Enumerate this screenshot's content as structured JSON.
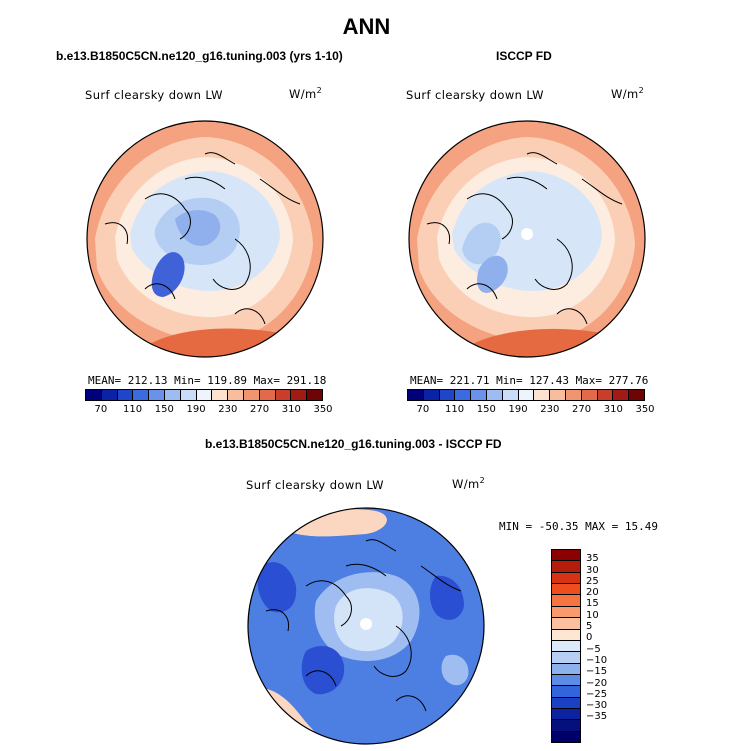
{
  "figure": {
    "title": "ANN"
  },
  "panels": [
    {
      "title": "b.e13.B1850C5CN.ne120_g16.tuning.003 (yrs 1-10)",
      "variable_label": "Surf clearsky down LW",
      "units_base": "W/m",
      "units_exp": "2",
      "stats_text": "MEAN= 212.13  Min= 119.89  Max= 291.18",
      "stats": {
        "mean": 212.13,
        "min": 119.89,
        "max": 291.18
      }
    },
    {
      "title": "ISCCP FD",
      "variable_label": "Surf clearsky down LW",
      "units_base": "W/m",
      "units_exp": "2",
      "stats_text": "MEAN= 221.71  Min= 127.43  Max= 277.76",
      "stats": {
        "mean": 221.71,
        "min": 127.43,
        "max": 277.76
      }
    },
    {
      "title": "b.e13.B1850C5CN.ne120_g16.tuning.003 - ISCCP FD",
      "variable_label": "Surf clearsky down LW",
      "units_base": "W/m",
      "units_exp": "2",
      "stats_text": "MIN = -50.35 MAX =  15.49",
      "stats": {
        "min": -50.35,
        "max": 15.49
      }
    }
  ],
  "colorbar_main": {
    "colors": [
      "#00007a",
      "#0a23a6",
      "#1f45c9",
      "#3c6ae0",
      "#6a92ea",
      "#9dbcf2",
      "#c9dcf8",
      "#eef4fb",
      "#fde2cf",
      "#f8bd9c",
      "#f19470",
      "#e2694a",
      "#c93e2a",
      "#a11a14",
      "#6e0404"
    ],
    "labels": [
      "70",
      "110",
      "150",
      "190",
      "230",
      "270",
      "310",
      "350"
    ]
  },
  "colorbar_diff": {
    "colors": [
      "#8b0000",
      "#b41c0c",
      "#d73214",
      "#ee4e1e",
      "#f6743f",
      "#f99a6c",
      "#fbc09f",
      "#fde6d3",
      "#dce9f8",
      "#b7cff2",
      "#8db1ec",
      "#5c8ce5",
      "#3264dc",
      "#1a40c4",
      "#0d22a0",
      "#06107c",
      "#00006b"
    ],
    "labels": [
      "35",
      "30",
      "25",
      "20",
      "15",
      "10",
      "5",
      "0",
      "−5",
      "−10",
      "−15",
      "−20",
      "−25",
      "−30",
      "−35"
    ]
  },
  "map_colors": {
    "outer_warm": "#f4a27f",
    "mid_warm": "#fbcfb5",
    "pale": "#fdece0",
    "light_blue": "#d6e6f8",
    "mid_blue": "#b4cdf2",
    "blue": "#8fb0ec",
    "dark_blue": "#3f62d8",
    "darkest": "#2a47c4",
    "hot": "#e56a42",
    "diff_base": "#4d7ee2",
    "diff_light": "#9fbdf0",
    "diff_pale": "#d3e3f8",
    "diff_dark": "#2a4fd2",
    "diff_warm": "#fbd7c2"
  }
}
